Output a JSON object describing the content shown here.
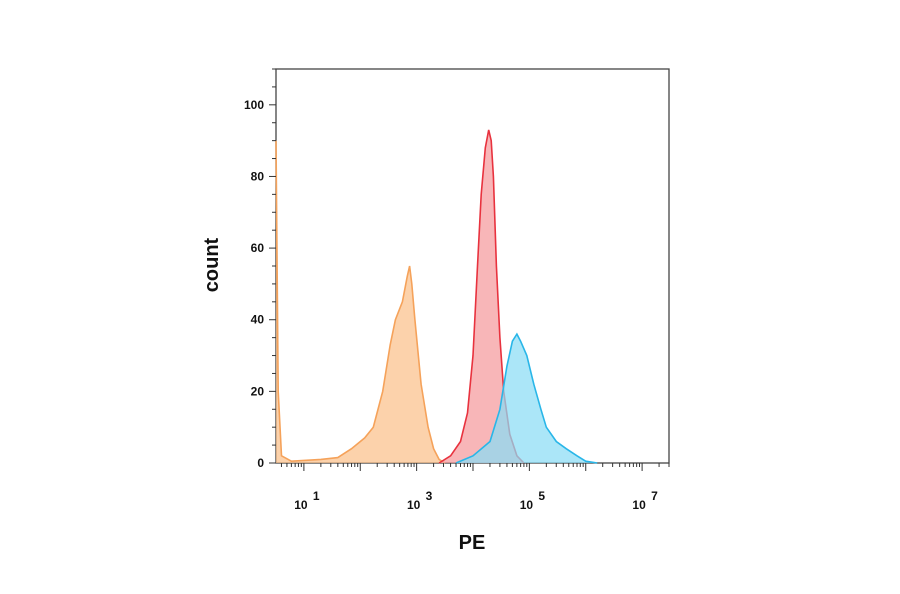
{
  "chart_data": {
    "type": "area",
    "xlabel": "PE",
    "ylabel": "count",
    "x_scale": "log",
    "xlim": [
      3.2,
      30000000
    ],
    "ylim": [
      0,
      110
    ],
    "y_ticks": [
      0,
      20,
      40,
      60,
      80,
      100
    ],
    "x_ticks": [
      {
        "value": 10,
        "base": "10",
        "exp": "1"
      },
      {
        "value": 1000,
        "base": "10",
        "exp": "3"
      },
      {
        "value": 100000,
        "base": "10",
        "exp": "5"
      },
      {
        "value": 10000000,
        "base": "10",
        "exp": "7"
      }
    ],
    "grid": false,
    "series": [
      {
        "color": "#f5a25a",
        "fill": "#fbc08a",
        "points": [
          [
            3.2,
            90
          ],
          [
            3.5,
            20
          ],
          [
            4,
            2
          ],
          [
            6,
            0.5
          ],
          [
            20,
            1
          ],
          [
            40,
            1.5
          ],
          [
            70,
            4
          ],
          [
            120,
            7
          ],
          [
            170,
            10
          ],
          [
            250,
            20
          ],
          [
            340,
            33
          ],
          [
            420,
            40
          ],
          [
            560,
            45
          ],
          [
            680,
            52
          ],
          [
            750,
            55
          ],
          [
            820,
            50
          ],
          [
            930,
            40
          ],
          [
            1200,
            22
          ],
          [
            1600,
            10
          ],
          [
            2000,
            4
          ],
          [
            2500,
            1
          ],
          [
            3200,
            0
          ]
        ]
      },
      {
        "color": "#e8323e",
        "fill": "#f59a9c",
        "points": [
          [
            2500,
            0
          ],
          [
            4000,
            2
          ],
          [
            6000,
            6
          ],
          [
            8000,
            14
          ],
          [
            10000,
            30
          ],
          [
            12000,
            55
          ],
          [
            14000,
            75
          ],
          [
            16500,
            88
          ],
          [
            19000,
            93
          ],
          [
            21000,
            90
          ],
          [
            23000,
            80
          ],
          [
            26000,
            55
          ],
          [
            30000,
            35
          ],
          [
            35000,
            20
          ],
          [
            45000,
            8
          ],
          [
            60000,
            2
          ],
          [
            80000,
            0
          ]
        ]
      },
      {
        "color": "#29b6e8",
        "fill": "#8adcf5",
        "points": [
          [
            5000,
            0
          ],
          [
            10000,
            2
          ],
          [
            20000,
            6
          ],
          [
            30000,
            15
          ],
          [
            40000,
            27
          ],
          [
            50000,
            34
          ],
          [
            60000,
            36
          ],
          [
            70000,
            34
          ],
          [
            90000,
            30
          ],
          [
            120000,
            22
          ],
          [
            160000,
            15
          ],
          [
            200000,
            10
          ],
          [
            300000,
            6
          ],
          [
            450000,
            4
          ],
          [
            700000,
            2
          ],
          [
            1000000,
            0.5
          ],
          [
            1600000,
            0
          ]
        ]
      }
    ]
  }
}
